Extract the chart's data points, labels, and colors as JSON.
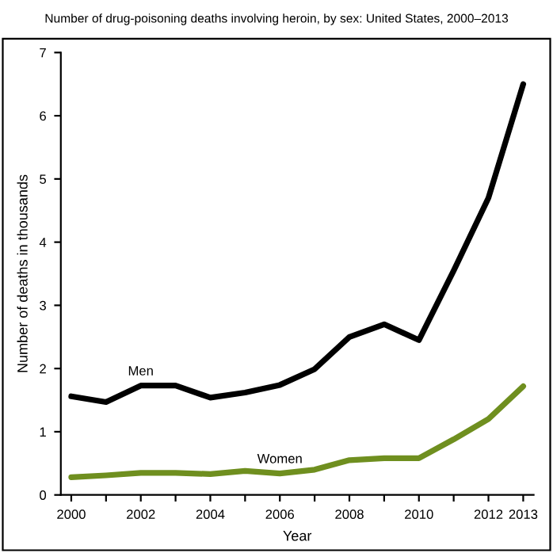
{
  "chart_data": {
    "type": "line",
    "title": "Number of drug-poisoning deaths involving heroin, by sex: United States, 2000–2013",
    "xlabel": "Year",
    "ylabel": "Number of deaths in thousands",
    "x": [
      2000,
      2001,
      2002,
      2003,
      2004,
      2005,
      2006,
      2007,
      2008,
      2009,
      2010,
      2011,
      2012,
      2013
    ],
    "series": [
      {
        "name": "Men",
        "color": "#000000",
        "values": [
          1.56,
          1.47,
          1.73,
          1.73,
          1.54,
          1.62,
          1.74,
          1.99,
          2.5,
          2.7,
          2.45,
          3.55,
          4.7,
          6.5
        ]
      },
      {
        "name": "Women",
        "color": "#6f8f1f",
        "values": [
          0.28,
          0.31,
          0.35,
          0.35,
          0.33,
          0.38,
          0.34,
          0.4,
          0.55,
          0.58,
          0.58,
          0.88,
          1.2,
          1.72
        ]
      }
    ],
    "xlim": [
      1999.7,
      2013.3
    ],
    "ylim": [
      0,
      7
    ],
    "xticks": [
      2000,
      {
        "value": 2001,
        "label": null
      },
      2002,
      {
        "value": 2003,
        "label": null
      },
      2004,
      {
        "value": 2005,
        "label": null
      },
      2006,
      {
        "value": 2007,
        "label": null
      },
      2008,
      {
        "value": 2009,
        "label": null
      },
      2010,
      {
        "value": 2011,
        "label": null
      },
      2012,
      2013
    ],
    "yticks": [
      0,
      1,
      2,
      3,
      4,
      5,
      6,
      7
    ],
    "grid": false,
    "legend": false,
    "marker": "none",
    "line_style": "solid"
  }
}
